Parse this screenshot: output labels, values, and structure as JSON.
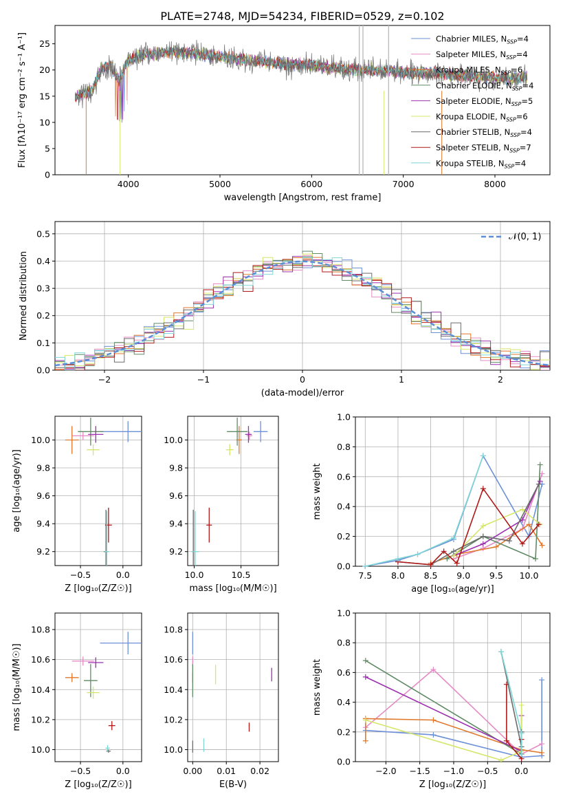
{
  "title": "PLATE=2748, MJD=54234, FIBERID=0529, z=0.102",
  "colors": {
    "Chabrier MILES": "#6b8fd8",
    "Salpeter MILES": "#e58bc4",
    "Kroupa MILES": "#e0772a",
    "Chabrier ELODIE": "#5f8a63",
    "Salpeter ELODIE": "#9b2fae",
    "Kroupa ELODIE": "#d6e66a",
    "Chabrier STELIB": "#6b6b6b",
    "Salpeter STELIB": "#b01818",
    "Kroupa STELIB": "#7fd6d6"
  },
  "chart_data": [
    {
      "id": "spectrum",
      "type": "line",
      "xlabel": "wavelength [Angstrom, rest frame]",
      "ylabel": "Flux [fλ10⁻¹⁷ erg cm⁻² s⁻¹ A⁻¹]",
      "xlim": [
        3200,
        8600
      ],
      "ylim": [
        0,
        28.5
      ],
      "xticks": [
        4000,
        5000,
        6000,
        7000,
        8000
      ],
      "yticks": [
        0,
        5,
        10,
        15,
        20,
        25
      ],
      "legend": [
        "Chabrier MILES, N_SSP=4",
        "Salpeter MILES, N_SSP=4",
        "Kroupa MILES, N_SSP=6",
        "Chabrier ELODIE, N_SSP=4",
        "Salpeter ELODIE, N_SSP=5",
        "Kroupa ELODIE, N_SSP=6",
        "Chabrier STELIB, N_SSP=4",
        "Salpeter STELIB, N_SSP=7",
        "Kroupa STELIB, N_SSP=4"
      ],
      "series": [
        {
          "name": "data",
          "x": [
            3420,
            3600,
            3700,
            3800,
            3900,
            4000,
            4200,
            4500,
            4800,
            5000,
            5200,
            5500,
            5800,
            6000,
            6200,
            6500,
            6800,
            7000,
            7300,
            7600,
            8000,
            8350
          ],
          "y": [
            15,
            16,
            20,
            21,
            18,
            22,
            23,
            23.5,
            23,
            22.5,
            22,
            21.5,
            21,
            21,
            20.5,
            20,
            20,
            19.5,
            19.5,
            19,
            18.5,
            18.5
          ]
        }
      ]
    },
    {
      "id": "residual",
      "type": "histogram",
      "xlabel": "(data-model)/error",
      "ylabel": "Normed distribution",
      "xlim": [
        -2.5,
        2.5
      ],
      "ylim": [
        0,
        0.545
      ],
      "xticks": [
        -2,
        -1,
        0,
        1,
        2
      ],
      "yticks": [
        0.0,
        0.1,
        0.2,
        0.3,
        0.4,
        0.5
      ],
      "legend": "𝒩(0, 1)"
    },
    {
      "id": "age_vs_Z",
      "type": "scatter",
      "xlabel": "Z [log₁₀(Z/Z☉)]",
      "ylabel": "age  [log₁₀(age/yr)]",
      "xlim": [
        -0.8,
        0.22
      ],
      "ylim": [
        9.1,
        10.17
      ],
      "xticks": [
        -0.5,
        0.0
      ],
      "yticks": [
        9.2,
        9.4,
        9.6,
        9.8,
        10.0
      ],
      "points": [
        {
          "model": "Chabrier MILES",
          "x": 0.06,
          "y": 10.06,
          "xerr": 0.66,
          "yerr": 0.15
        },
        {
          "model": "Salpeter MILES",
          "x": -0.47,
          "y": 10.03,
          "xerr": 0.26,
          "yerr": 0.06
        },
        {
          "model": "Kroupa MILES",
          "x": -0.6,
          "y": 10.0,
          "xerr": 0.16,
          "yerr": 0.2
        },
        {
          "model": "Chabrier ELODIE",
          "x": -0.38,
          "y": 10.06,
          "xerr": 0.3,
          "yerr": 0.2
        },
        {
          "model": "Salpeter ELODIE",
          "x": -0.32,
          "y": 10.04,
          "xerr": 0.18,
          "yerr": 0.12
        },
        {
          "model": "Kroupa ELODIE",
          "x": -0.35,
          "y": 9.93,
          "xerr": 0.15,
          "yerr": 0.08
        },
        {
          "model": "Chabrier STELIB",
          "x": -0.2,
          "y": 9.2,
          "xerr": 0.05,
          "yerr": 0.6
        },
        {
          "model": "Salpeter STELIB",
          "x": -0.17,
          "y": 9.39,
          "xerr": 0.08,
          "yerr": 0.25
        },
        {
          "model": "Kroupa STELIB",
          "x": -0.19,
          "y": 9.2,
          "xerr": 0.05,
          "yerr": 0.58
        }
      ]
    },
    {
      "id": "age_vs_mass",
      "type": "scatter",
      "xlabel": "mass [log₁₀(M/M☉)]",
      "ylabel": "",
      "xlim": [
        9.93,
        10.9
      ],
      "ylim": [
        9.1,
        10.17
      ],
      "xticks": [
        10.0,
        10.5
      ],
      "yticks": [
        9.2,
        9.4,
        9.6,
        9.8,
        10.0
      ],
      "points": [
        {
          "model": "Chabrier MILES",
          "x": 10.71,
          "y": 10.06,
          "xerr": 0.15,
          "yerr": 0.15
        },
        {
          "model": "Salpeter MILES",
          "x": 10.59,
          "y": 10.03,
          "xerr": 0.06,
          "yerr": 0.06
        },
        {
          "model": "Kroupa MILES",
          "x": 10.48,
          "y": 10.0,
          "xerr": 0.06,
          "yerr": 0.2
        },
        {
          "model": "Chabrier ELODIE",
          "x": 10.46,
          "y": 10.06,
          "xerr": 0.22,
          "yerr": 0.2
        },
        {
          "model": "Salpeter ELODIE",
          "x": 10.58,
          "y": 10.04,
          "xerr": 0.07,
          "yerr": 0.12
        },
        {
          "model": "Kroupa ELODIE",
          "x": 10.38,
          "y": 9.93,
          "xerr": 0.08,
          "yerr": 0.08
        },
        {
          "model": "Chabrier STELIB",
          "x": 9.99,
          "y": 9.2,
          "xerr": 0.02,
          "yerr": 0.6
        },
        {
          "model": "Salpeter STELIB",
          "x": 10.16,
          "y": 9.39,
          "xerr": 0.06,
          "yerr": 0.25
        },
        {
          "model": "Kroupa STELIB",
          "x": 10.01,
          "y": 9.2,
          "xerr": 0.08,
          "yerr": 0.58
        }
      ]
    },
    {
      "id": "mass_vs_Z",
      "type": "scatter",
      "xlabel": "Z [log₁₀(Z/Z☉)]",
      "ylabel": "mass [log₁₀(M/M☉)]",
      "xlim": [
        -0.8,
        0.22
      ],
      "ylim": [
        9.92,
        10.91
      ],
      "xticks": [
        -0.5,
        0.0
      ],
      "yticks": [
        10.0,
        10.2,
        10.4,
        10.6,
        10.8
      ],
      "points": [
        {
          "model": "Chabrier MILES",
          "x": 0.06,
          "y": 10.71,
          "xerr": 0.66,
          "yerr": 0.15
        },
        {
          "model": "Salpeter MILES",
          "x": -0.47,
          "y": 10.59,
          "xerr": 0.26,
          "yerr": 0.06
        },
        {
          "model": "Kroupa MILES",
          "x": -0.6,
          "y": 10.48,
          "xerr": 0.16,
          "yerr": 0.06
        },
        {
          "model": "Chabrier ELODIE",
          "x": -0.38,
          "y": 10.46,
          "xerr": 0.16,
          "yerr": 0.22
        },
        {
          "model": "Salpeter ELODIE",
          "x": -0.32,
          "y": 10.58,
          "xerr": 0.18,
          "yerr": 0.07
        },
        {
          "model": "Kroupa ELODIE",
          "x": -0.35,
          "y": 10.38,
          "xerr": 0.15,
          "yerr": 0.08
        },
        {
          "model": "Chabrier STELIB",
          "x": -0.17,
          "y": 9.99,
          "xerr": 0.05,
          "yerr": 0.02
        },
        {
          "model": "Salpeter STELIB",
          "x": -0.13,
          "y": 10.16,
          "xerr": 0.08,
          "yerr": 0.06
        },
        {
          "model": "Kroupa STELIB",
          "x": -0.18,
          "y": 10.01,
          "xerr": 0.05,
          "yerr": 0.04
        }
      ]
    },
    {
      "id": "mass_vs_EBV",
      "type": "scatter",
      "xlabel": "E(B-V)",
      "ylabel": "",
      "xlim": [
        -0.0015,
        0.0255
      ],
      "ylim": [
        9.92,
        10.91
      ],
      "xticks": [
        0.0,
        0.01,
        0.02
      ],
      "yticks": [
        10.0,
        10.2,
        10.4,
        10.6,
        10.8
      ],
      "points": [
        {
          "model": "Chabrier MILES",
          "x": 0.0,
          "y": 10.71,
          "xerr": 0,
          "yerr": 0.15
        },
        {
          "model": "Salpeter MILES",
          "x": 0.0,
          "y": 10.59,
          "xerr": 0,
          "yerr": 0.06
        },
        {
          "model": "Kroupa MILES",
          "x": 0.0,
          "y": 10.48,
          "xerr": 0,
          "yerr": 0.06
        },
        {
          "model": "Chabrier ELODIE",
          "x": 0.0,
          "y": 10.46,
          "xerr": 0,
          "yerr": 0.22
        },
        {
          "model": "Salpeter ELODIE",
          "x": 0.0235,
          "y": 10.5,
          "xerr": 0,
          "yerr": 0.09
        },
        {
          "model": "Kroupa ELODIE",
          "x": 0.0068,
          "y": 10.5,
          "xerr": 0,
          "yerr": 0.13
        },
        {
          "model": "Chabrier STELIB",
          "x": 0.0,
          "y": 10.02,
          "xerr": 0,
          "yerr": 0.08
        },
        {
          "model": "Salpeter STELIB",
          "x": 0.0168,
          "y": 10.15,
          "xerr": 0,
          "yerr": 0.06
        },
        {
          "model": "Kroupa STELIB",
          "x": 0.0033,
          "y": 10.03,
          "xerr": 0,
          "yerr": 0.09
        }
      ]
    },
    {
      "id": "weight_vs_age",
      "type": "line",
      "xlabel": "age  [log₁₀(age/yr)]",
      "ylabel": "mass weight",
      "xlim": [
        7.35,
        10.32
      ],
      "ylim": [
        0,
        1.0
      ],
      "xticks": [
        7.5,
        8.0,
        8.5,
        9.0,
        9.5,
        10.0
      ],
      "yticks": [
        0.0,
        0.2,
        0.4,
        0.6,
        0.8,
        1.0
      ],
      "series": [
        {
          "model": "Chabrier MILES",
          "x": [
            7.5,
            8.0,
            8.3,
            8.85,
            9.3,
            10.0,
            10.2
          ],
          "y": [
            0.0,
            0.04,
            0.08,
            0.18,
            0.74,
            0.2,
            0.55
          ]
        },
        {
          "model": "Salpeter MILES",
          "x": [
            8.85,
            9.3,
            9.9,
            10.2
          ],
          "y": [
            0.05,
            0.12,
            0.25,
            0.62
          ]
        },
        {
          "model": "Kroupa MILES",
          "x": [
            8.5,
            8.9,
            9.5,
            10.0,
            10.2
          ],
          "y": [
            0.02,
            0.08,
            0.13,
            0.28,
            0.14
          ]
        },
        {
          "model": "Chabrier ELODIE",
          "x": [
            8.75,
            9.3,
            10.1,
            10.17
          ],
          "y": [
            0.05,
            0.2,
            0.05,
            0.68
          ]
        },
        {
          "model": "Salpeter ELODIE",
          "x": [
            8.85,
            9.3,
            9.9,
            10.17
          ],
          "y": [
            0.07,
            0.15,
            0.31,
            0.57
          ]
        },
        {
          "model": "Kroupa ELODIE",
          "x": [
            8.85,
            9.3,
            9.9,
            10.17
          ],
          "y": [
            0.07,
            0.27,
            0.38,
            0.28
          ]
        },
        {
          "model": "Chabrier STELIB",
          "x": [
            8.0,
            8.5,
            8.85,
            9.3,
            9.7,
            10.15
          ],
          "y": [
            0.03,
            0.01,
            0.1,
            0.2,
            0.17,
            0.55
          ]
        },
        {
          "model": "Salpeter STELIB",
          "x": [
            8.0,
            8.5,
            8.7,
            8.9,
            9.3,
            9.9,
            10.15
          ],
          "y": [
            0.03,
            0.01,
            0.1,
            0.02,
            0.52,
            0.15,
            0.28
          ]
        },
        {
          "model": "Kroupa STELIB",
          "x": [
            7.5,
            8.0,
            8.3,
            8.85,
            9.3
          ],
          "y": [
            0.0,
            0.05,
            0.08,
            0.19,
            0.74
          ]
        }
      ]
    },
    {
      "id": "weight_vs_Z",
      "type": "line",
      "xlabel": "Z [log₁₀(Z/Z☉)]",
      "ylabel": "mass weight",
      "xlim": [
        -2.45,
        0.42
      ],
      "ylim": [
        0,
        1.0
      ],
      "xticks": [
        -2.0,
        -1.5,
        -1.0,
        -0.5,
        0.0
      ],
      "yticks": [
        0.0,
        0.2,
        0.4,
        0.6,
        0.8,
        1.0
      ],
      "series": [
        {
          "model": "Chabrier MILES",
          "x": [
            -2.3,
            -1.3,
            0.0,
            0.3,
            0.3
          ],
          "y": [
            0.21,
            0.18,
            0.03,
            0.04,
            0.55
          ]
        },
        {
          "model": "Salpeter MILES",
          "x": [
            -2.3,
            -1.3,
            0.0,
            0.3
          ],
          "y": [
            0.23,
            0.62,
            0.05,
            0.12
          ]
        },
        {
          "model": "Kroupa MILES",
          "x": [
            -2.3,
            -2.3,
            -1.3,
            0.0,
            0.3
          ],
          "y": [
            0.14,
            0.29,
            0.28,
            0.08,
            0.06
          ]
        },
        {
          "model": "Chabrier ELODIE",
          "x": [
            -2.3,
            0.0,
            0.0
          ],
          "y": [
            0.68,
            0.05,
            0.2
          ]
        },
        {
          "model": "Salpeter ELODIE",
          "x": [
            -2.3,
            0.0,
            0.0
          ],
          "y": [
            0.57,
            0.07,
            0.31
          ]
        },
        {
          "model": "Kroupa ELODIE",
          "x": [
            -2.3,
            -0.3,
            0.0,
            0.0
          ],
          "y": [
            0.28,
            0.01,
            0.07,
            0.38
          ]
        },
        {
          "model": "Chabrier STELIB",
          "x": [
            -0.3,
            0.0,
            0.0
          ],
          "y": [
            0.74,
            0.1,
            0.2
          ]
        },
        {
          "model": "Salpeter STELIB",
          "x": [
            -0.22,
            -0.22,
            0.0,
            0.0
          ],
          "y": [
            0.52,
            0.14,
            0.02,
            0.15
          ]
        },
        {
          "model": "Kroupa STELIB",
          "x": [
            -0.3,
            0.0,
            0.0
          ],
          "y": [
            0.74,
            0.19,
            0.05
          ]
        }
      ]
    }
  ]
}
